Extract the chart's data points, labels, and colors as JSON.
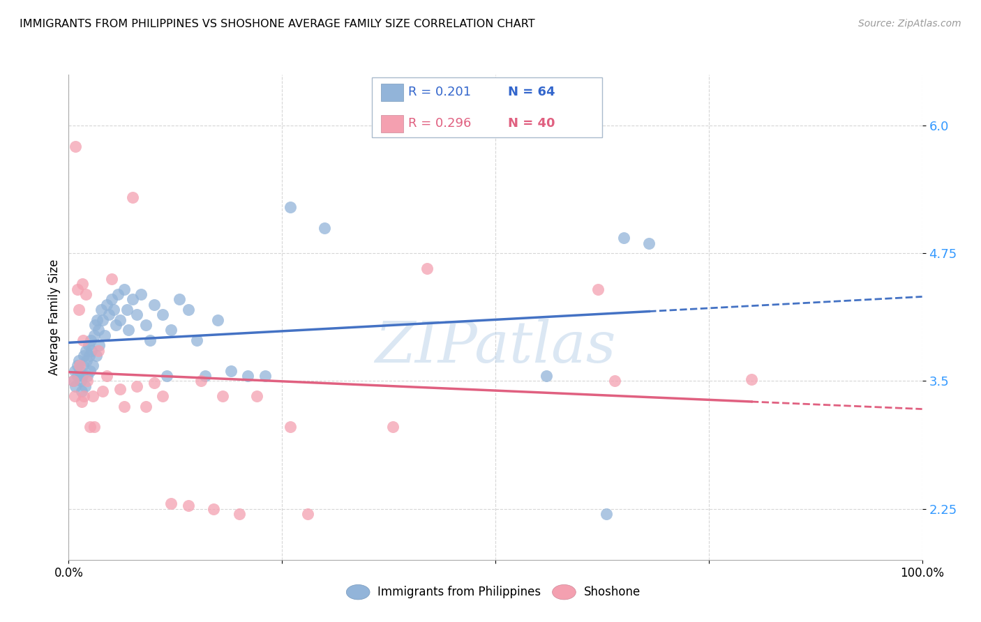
{
  "title": "IMMIGRANTS FROM PHILIPPINES VS SHOSHONE AVERAGE FAMILY SIZE CORRELATION CHART",
  "source": "Source: ZipAtlas.com",
  "ylabel": "Average Family Size",
  "xlim": [
    0,
    1
  ],
  "ylim": [
    1.75,
    6.5
  ],
  "yticks": [
    2.25,
    3.5,
    4.75,
    6.0
  ],
  "xticks": [
    0.0,
    0.25,
    0.5,
    0.75,
    1.0
  ],
  "xticklabels": [
    "0.0%",
    "",
    "",
    "",
    "100.0%"
  ],
  "legend_r1": "R = 0.201",
  "legend_n1": "N = 64",
  "legend_r2": "R = 0.296",
  "legend_n2": "N = 40",
  "blue_color": "#92B4D9",
  "pink_color": "#F4A0B0",
  "line_blue": "#4472C4",
  "line_pink": "#E06080",
  "watermark": "ZIPatlas",
  "blue_x": [
    0.005,
    0.007,
    0.008,
    0.01,
    0.01,
    0.012,
    0.013,
    0.014,
    0.015,
    0.016,
    0.017,
    0.018,
    0.019,
    0.02,
    0.021,
    0.022,
    0.023,
    0.024,
    0.025,
    0.026,
    0.027,
    0.028,
    0.03,
    0.031,
    0.032,
    0.033,
    0.035,
    0.036,
    0.038,
    0.04,
    0.042,
    0.045,
    0.047,
    0.05,
    0.053,
    0.055,
    0.058,
    0.06,
    0.065,
    0.068,
    0.07,
    0.075,
    0.08,
    0.085,
    0.09,
    0.095,
    0.1,
    0.11,
    0.115,
    0.12,
    0.13,
    0.14,
    0.15,
    0.16,
    0.175,
    0.19,
    0.21,
    0.23,
    0.26,
    0.3,
    0.56,
    0.63,
    0.65,
    0.68
  ],
  "blue_y": [
    3.5,
    3.6,
    3.45,
    3.55,
    3.65,
    3.7,
    3.6,
    3.5,
    3.4,
    3.55,
    3.65,
    3.75,
    3.45,
    3.8,
    3.7,
    3.55,
    3.85,
    3.75,
    3.6,
    3.9,
    3.8,
    3.65,
    3.95,
    4.05,
    3.75,
    4.1,
    4.0,
    3.85,
    4.2,
    4.1,
    3.95,
    4.25,
    4.15,
    4.3,
    4.2,
    4.05,
    4.35,
    4.1,
    4.4,
    4.2,
    4.0,
    4.3,
    4.15,
    4.35,
    4.05,
    3.9,
    4.25,
    4.15,
    3.55,
    4.0,
    4.3,
    4.2,
    3.9,
    3.55,
    4.1,
    3.6,
    3.55,
    3.55,
    5.2,
    5.0,
    3.55,
    2.2,
    4.9,
    4.85
  ],
  "pink_x": [
    0.005,
    0.007,
    0.008,
    0.01,
    0.012,
    0.013,
    0.015,
    0.016,
    0.017,
    0.018,
    0.02,
    0.022,
    0.025,
    0.028,
    0.03,
    0.035,
    0.04,
    0.045,
    0.05,
    0.06,
    0.065,
    0.075,
    0.08,
    0.09,
    0.1,
    0.11,
    0.12,
    0.14,
    0.155,
    0.17,
    0.18,
    0.2,
    0.22,
    0.26,
    0.28,
    0.38,
    0.42,
    0.62,
    0.64,
    0.8
  ],
  "pink_y": [
    3.5,
    3.35,
    5.8,
    4.4,
    4.2,
    3.65,
    3.3,
    4.45,
    3.9,
    3.35,
    4.35,
    3.5,
    3.05,
    3.35,
    3.05,
    3.8,
    3.4,
    3.55,
    4.5,
    3.42,
    3.25,
    5.3,
    3.45,
    3.25,
    3.48,
    3.35,
    2.3,
    2.28,
    3.5,
    2.25,
    3.35,
    2.2,
    3.35,
    3.05,
    2.2,
    3.05,
    4.6,
    4.4,
    3.5,
    3.52
  ]
}
